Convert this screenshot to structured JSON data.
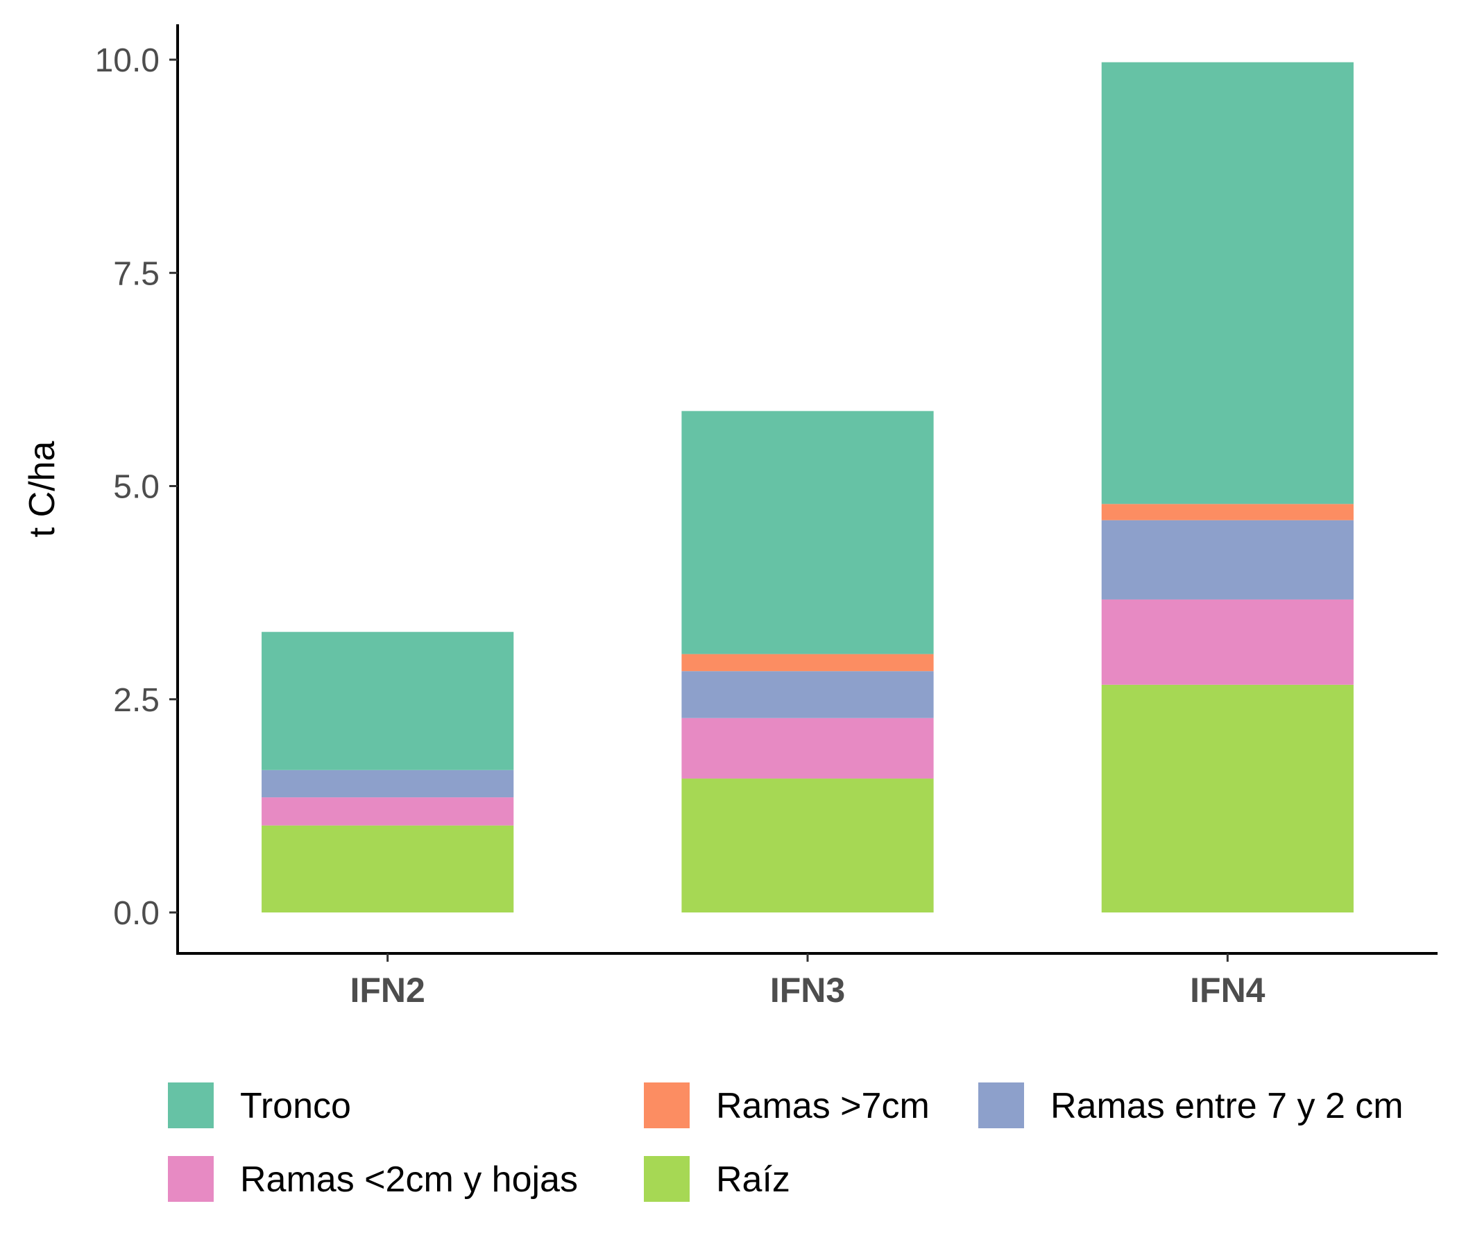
{
  "chart_data": {
    "type": "bar",
    "stacked": true,
    "title": "",
    "xlabel": "",
    "ylabel": "t C/ha",
    "ylim": [
      -0.5,
      10.5
    ],
    "yticks": [
      0.0,
      2.5,
      5.0,
      7.5,
      10.0
    ],
    "ytick_labels": [
      "0.0",
      "2.5",
      "5.0",
      "7.5",
      "10.0"
    ],
    "categories": [
      "IFN2",
      "IFN3",
      "IFN4"
    ],
    "series": [
      {
        "name": "Raíz",
        "color": "#a6d854",
        "values": [
          1.02,
          1.57,
          2.67
        ]
      },
      {
        "name": "Ramas <2cm y hojas",
        "color": "#e78ac3",
        "values": [
          0.33,
          0.71,
          1.0
        ]
      },
      {
        "name": "Ramas entre 7 y 2 cm",
        "color": "#8da0cb",
        "values": [
          0.32,
          0.55,
          0.93
        ]
      },
      {
        "name": "Ramas >7cm",
        "color": "#fc8d62",
        "values": [
          0.0,
          0.2,
          0.19
        ]
      },
      {
        "name": "Tronco",
        "color": "#66c2a5",
        "values": [
          1.62,
          2.85,
          5.18
        ]
      }
    ],
    "legend": {
      "position": "bottom",
      "order": [
        "Tronco",
        "Ramas >7cm",
        "Ramas entre 7 y 2 cm",
        "Ramas <2cm y hojas",
        "Raíz"
      ]
    },
    "grid": false
  }
}
